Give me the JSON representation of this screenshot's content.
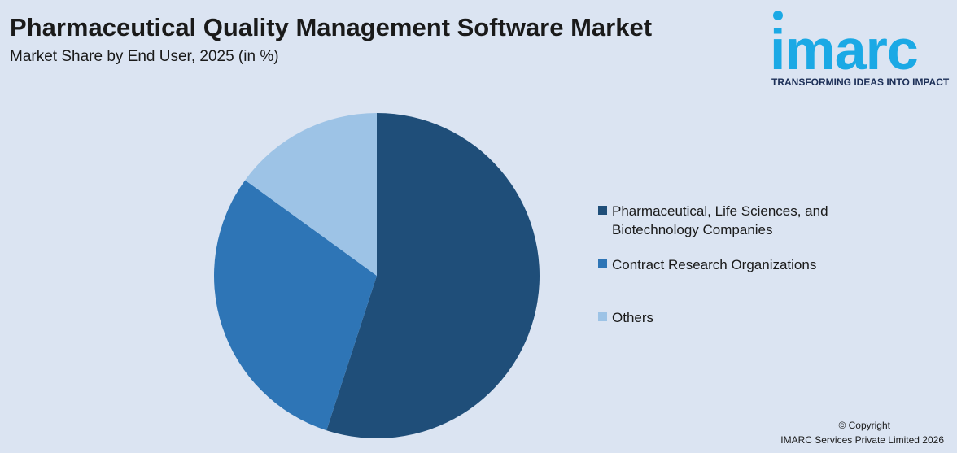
{
  "header": {
    "title": "Pharmaceutical Quality Management Software Market",
    "subtitle": "Market Share by End User, 2025 (in %)"
  },
  "brand": {
    "logo_text": "imarc",
    "tagline": "TRANSFORMING IDEAS INTO IMPACT",
    "color": "#1ba9e5"
  },
  "chart_data": {
    "type": "pie",
    "title": "Pharmaceutical Quality Management Software Market",
    "subtitle": "Market Share by End User, 2025 (in %)",
    "legend_position": "right",
    "slices": [
      {
        "label": "Pharmaceutical, Life Sciences, and Biotechnology Companies",
        "value": 55,
        "color": "#1f4e79"
      },
      {
        "label": "Contract Research Organizations",
        "value": 30,
        "color": "#2e75b6"
      },
      {
        "label": "Others",
        "value": 15,
        "color": "#9dc3e6"
      }
    ]
  },
  "footer": {
    "copyright": "© Copyright",
    "company": "IMARC Services Private Limited 2026"
  }
}
